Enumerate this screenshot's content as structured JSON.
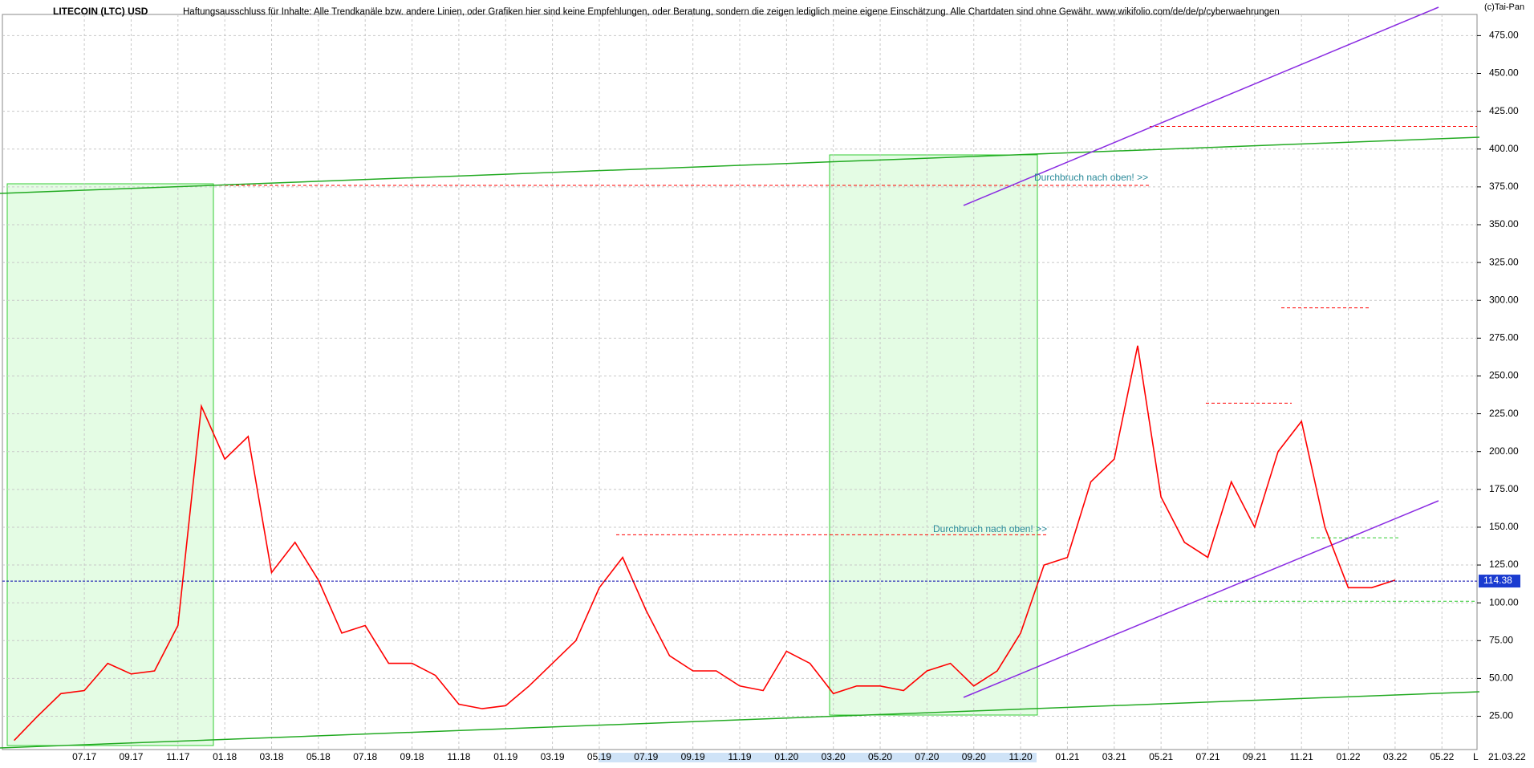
{
  "chart_data": {
    "type": "line",
    "title": "LITECOIN (LTC) USD",
    "subtitle": "Haftungsausschluss für Inhalte: Alle Trendkanäle bzw. andere Linien, oder Grafiken hier sind keine Empfehlungen, oder Beratung, sondern die zeigen lediglich meine eigene Einschätzung. Alle Chartdaten sind ohne Gewähr.  www.wikifolio.com/de/de/p/cyberwaehrungen",
    "copyright": "(c)Tai-Pan",
    "date": "21.03.22",
    "axis_marker": "L",
    "categories": [
      null,
      null,
      null,
      "07.17",
      null,
      "09.17",
      null,
      "11.17",
      null,
      "01.18",
      null,
      "03.18",
      null,
      "05.18",
      null,
      "07.18",
      null,
      "09.18",
      null,
      "11.18",
      null,
      "01.19",
      null,
      "03.19",
      null,
      "05.19",
      null,
      "07.19",
      null,
      "09.19",
      null,
      "11.19",
      null,
      "01.20",
      null,
      "03.20",
      null,
      "05.20",
      null,
      "07.20",
      null,
      "09.20",
      null,
      "11.20",
      null,
      "01.21",
      null,
      "03.21",
      null,
      "05.21",
      null,
      "07.21",
      null,
      "09.21",
      null,
      "11.21",
      null,
      "01.22",
      null,
      "03.22",
      null,
      "05.22",
      null
    ],
    "series": [
      {
        "name": "LTC",
        "color": "#ff0000",
        "values": [
          9,
          25,
          40,
          42,
          60,
          53,
          55,
          85,
          230,
          195,
          210,
          120,
          140,
          115,
          80,
          85,
          60,
          60,
          52,
          33,
          30,
          32,
          45,
          60,
          75,
          110,
          130,
          95,
          65,
          55,
          55,
          45,
          42,
          68,
          60,
          40,
          45,
          45,
          42,
          55,
          60,
          45,
          55,
          80,
          125,
          130,
          180,
          195,
          270,
          170,
          140,
          130,
          180,
          150,
          200,
          220,
          150,
          110,
          110,
          115,
          null,
          null,
          null
        ]
      }
    ],
    "ylim": [
      3,
      489
    ],
    "yticks": [
      {
        "value": 25,
        "label": "25.00"
      },
      {
        "value": 50,
        "label": "50.00"
      },
      {
        "value": 75,
        "label": "75.00"
      },
      {
        "value": 100,
        "label": "100.00"
      },
      {
        "value": 125,
        "label": "125.00"
      },
      {
        "value": 150,
        "label": "150.00"
      },
      {
        "value": 175,
        "label": "175.00"
      },
      {
        "value": 200,
        "label": "200.00"
      },
      {
        "value": 225,
        "label": "225.00"
      },
      {
        "value": 250,
        "label": "250.00"
      },
      {
        "value": 275,
        "label": "275.00"
      },
      {
        "value": 300,
        "label": "300.00"
      },
      {
        "value": 325,
        "label": "325.00"
      },
      {
        "value": 350,
        "label": "350.00"
      },
      {
        "value": 375,
        "label": "375.00"
      },
      {
        "value": 400,
        "label": "400.00"
      },
      {
        "value": 425,
        "label": "425.00"
      },
      {
        "value": 450,
        "label": "450.00"
      },
      {
        "value": 475,
        "label": "475.00"
      }
    ],
    "grid": true,
    "current_price": 114.38,
    "levels": [
      {
        "value": 376,
        "color": "#ff0000"
      },
      {
        "value": 415,
        "color": "#ff0000"
      },
      {
        "value": 145,
        "color": "#ff0000"
      },
      {
        "value": 232,
        "color": "#ff0000"
      },
      {
        "value": 295,
        "color": "#ff0000"
      },
      {
        "value": 143,
        "color": "#33cc33"
      },
      {
        "value": 101,
        "color": "#33cc33"
      }
    ],
    "annotations": [
      "Durchbruch nach oben! >>",
      "Durchbruch nach oben! >>"
    ]
  }
}
